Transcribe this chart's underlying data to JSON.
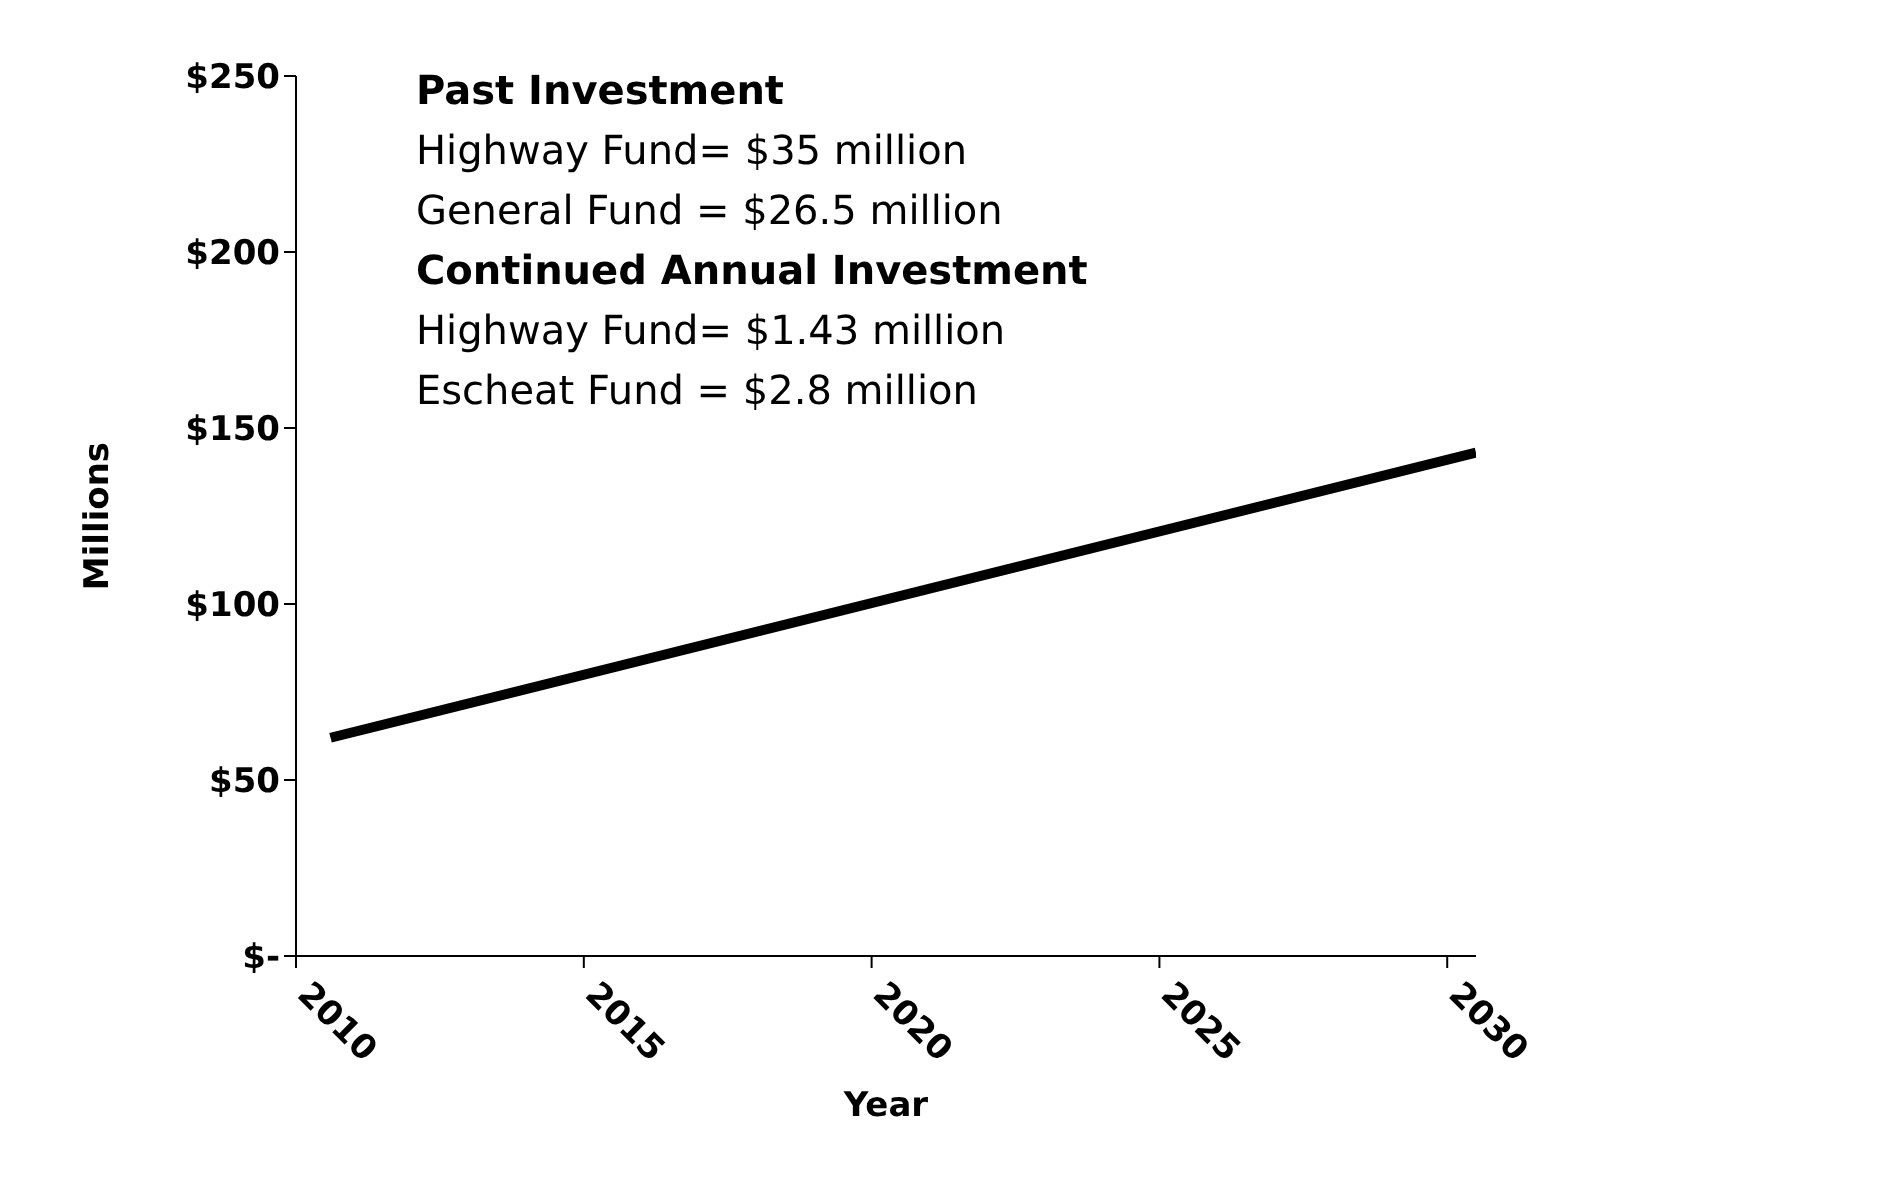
{
  "chart_data": {
    "type": "line",
    "xlabel": "Year",
    "ylabel": "Millions",
    "x": [
      2010.6,
      2030.5
    ],
    "series": [
      {
        "color": "#000000",
        "values": [
          62,
          143
        ]
      }
    ],
    "xlim": [
      2010,
      2030.5
    ],
    "xticks": [
      2010,
      2015,
      2020,
      2025,
      2030
    ],
    "ylim": [
      0,
      250
    ],
    "yticks": [
      {
        "value": 0,
        "label": "$-"
      },
      {
        "value": 50,
        "label": "$50"
      },
      {
        "value": 100,
        "label": "$100"
      },
      {
        "value": 150,
        "label": "$150"
      },
      {
        "value": 200,
        "label": "$200"
      },
      {
        "value": 250,
        "label": "$250"
      }
    ],
    "annotations": [
      "Past Investment",
      "Highway Fund= $35 million",
      "General Fund = $26.5 million",
      "Continued Annual Investment",
      "Highway Fund= $1.43 million",
      "Escheat Fund = $2.8 million"
    ],
    "marker": "none",
    "line_style": "solid"
  }
}
